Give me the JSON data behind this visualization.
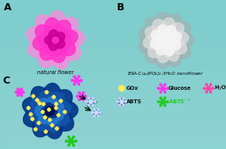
{
  "bg_color": "#7ecece",
  "panel_a_label": "A",
  "panel_b_label": "B",
  "panel_c_label": "C",
  "label_a_text": "natural flower",
  "label_b_text": "BSA-Cuₓ(PO₄)₂·3H₂O nanoflower",
  "flower_a_color": "#ff33cc",
  "flower_a_dark": "#cc0099",
  "flower_a_light": "#ff88dd",
  "flower_b_color": "#dddddd",
  "flower_b_dark": "#aaaaaa",
  "flower_b_light": "#f5f5f5",
  "flower_c_main": "#1155aa",
  "flower_c_dark": "#003388",
  "flower_c_light": "#2277cc",
  "dot_color": "#ffee55",
  "dot_edge": "#aa8800",
  "star_pink": "#ff33ee",
  "star_hotpink": "#ff44aa",
  "star_green": "#22cc22",
  "star_abts_fill": "#ccddff",
  "star_abts_edge": "#5566aa",
  "text_color": "#111111",
  "figw": 2.86,
  "figh": 1.89,
  "dpi": 100
}
